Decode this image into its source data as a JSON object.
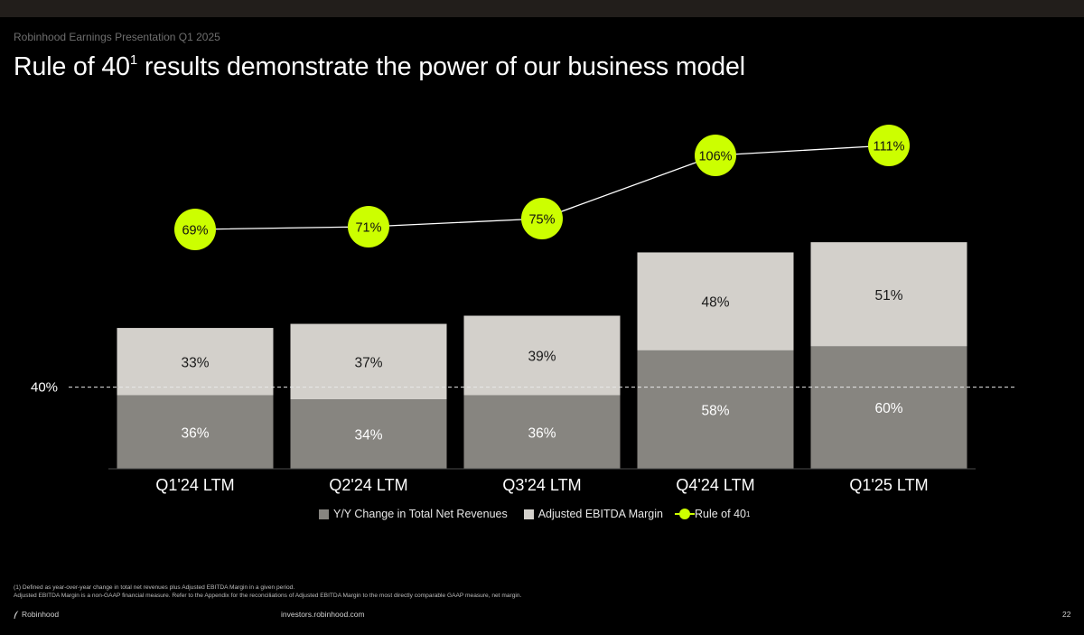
{
  "header": {
    "subtitle": "Robinhood Earnings Presentation Q1 2025",
    "title": "Rule of 40",
    "title_sup": "1",
    "title_rest": " results demonstrate the power of our business model"
  },
  "chart_data": {
    "type": "bar",
    "stacked": true,
    "categories": [
      "Q1'24 LTM",
      "Q2'24 LTM",
      "Q3'24 LTM",
      "Q4'24 LTM",
      "Q1'25 LTM"
    ],
    "series": [
      {
        "name": "Y/Y Change in Total Net Revenues",
        "values": [
          36,
          34,
          36,
          58,
          60
        ],
        "labels": [
          "36%",
          "34%",
          "36%",
          "58%",
          "60%"
        ],
        "color": "#878580"
      },
      {
        "name": "Adjusted EBITDA Margin",
        "values": [
          33,
          37,
          39,
          48,
          51
        ],
        "labels": [
          "33%",
          "37%",
          "39%",
          "48%",
          "51%"
        ],
        "color": "#d3d0cb"
      }
    ],
    "line": {
      "name": "Rule of 40",
      "name_sup": "1",
      "values": [
        69,
        71,
        75,
        106,
        111
      ],
      "labels": [
        "69%",
        "71%",
        "75%",
        "106%",
        "111%"
      ],
      "color": "#ccff00"
    },
    "reference_line": {
      "value": 40,
      "label": "40%"
    }
  },
  "footnotes": [
    "(1) Defined as year-over-year change in total net revenues plus Adjusted EBITDA Margin in a given period.",
    "Adjusted EBITDA Margin is a non-GAAP financial measure. Refer to the Appendix for the reconciliations of Adjusted EBITDA Margin to the most directly comparable GAAP measure, net margin."
  ],
  "footer": {
    "brand": "Robinhood",
    "website": "investors.robinhood.com",
    "page_number": "22"
  }
}
